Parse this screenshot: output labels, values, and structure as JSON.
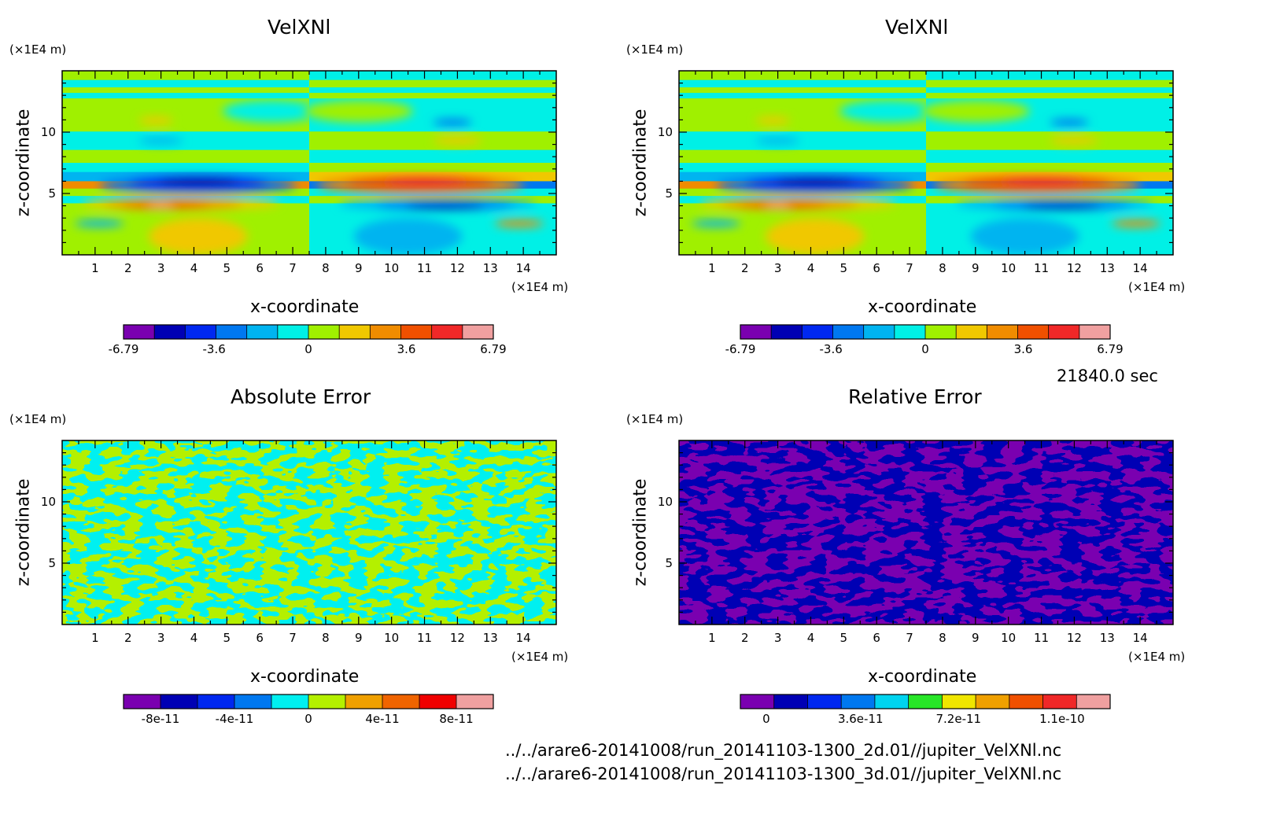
{
  "footer": {
    "time": "21840.0 sec",
    "file1": "../../arare6-20141008/run_20141103-1300_2d.01//jupiter_VelXNl.nc",
    "file2": "../../arare6-20141008/run_20141103-1300_3d.01//jupiter_VelXNl.nc"
  },
  "chart_data": [
    {
      "type": "heatmap",
      "title": "VelXNl",
      "xlabel": "x-coordinate",
      "ylabel": "z-coordinate",
      "x_unit": "(×1E4 m)",
      "y_unit": "(×1E4 m)",
      "xlim": [
        0,
        15
      ],
      "ylim": [
        0,
        15
      ],
      "xticks": [
        "1",
        "2",
        "3",
        "4",
        "5",
        "6",
        "7",
        "8",
        "9",
        "10",
        "11",
        "12",
        "13",
        "14"
      ],
      "yticks": [
        "5",
        "10"
      ],
      "colorbar": {
        "colors": [
          "#7a00b0",
          "#0000b4",
          "#0028f0",
          "#0078f0",
          "#00b4f0",
          "#00f0e6",
          "#a0f000",
          "#f0c800",
          "#f08c00",
          "#f05000",
          "#f02828",
          "#f0a0a0"
        ],
        "tick_labels": [
          "-6.79",
          "-3.6",
          "0",
          "3.6",
          "6.79"
        ],
        "tick_positions": [
          0,
          0.245,
          0.5,
          0.765,
          1
        ]
      }
    },
    {
      "type": "heatmap",
      "title": "VelXNl",
      "xlabel": "x-coordinate",
      "ylabel": "z-coordinate",
      "x_unit": "(×1E4 m)",
      "y_unit": "(×1E4 m)",
      "xlim": [
        0,
        15
      ],
      "ylim": [
        0,
        15
      ],
      "xticks": [
        "1",
        "2",
        "3",
        "4",
        "5",
        "6",
        "7",
        "8",
        "9",
        "10",
        "11",
        "12",
        "13",
        "14"
      ],
      "yticks": [
        "5",
        "10"
      ],
      "colorbar": {
        "colors": [
          "#7a00b0",
          "#0000b4",
          "#0028f0",
          "#0078f0",
          "#00b4f0",
          "#00f0e6",
          "#a0f000",
          "#f0c800",
          "#f08c00",
          "#f05000",
          "#f02828",
          "#f0a0a0"
        ],
        "tick_labels": [
          "-6.79",
          "-3.6",
          "0",
          "3.6",
          "6.79"
        ],
        "tick_positions": [
          0,
          0.245,
          0.5,
          0.765,
          1
        ]
      }
    },
    {
      "type": "heatmap",
      "title": "Absolute Error",
      "xlabel": "x-coordinate",
      "ylabel": "z-coordinate",
      "x_unit": "(×1E4 m)",
      "y_unit": "(×1E4 m)",
      "xlim": [
        0,
        15
      ],
      "ylim": [
        0,
        15
      ],
      "xticks": [
        "1",
        "2",
        "3",
        "4",
        "5",
        "6",
        "7",
        "8",
        "9",
        "10",
        "11",
        "12",
        "13",
        "14"
      ],
      "yticks": [
        "5",
        "10"
      ],
      "colorbar": {
        "colors": [
          "#7a00b0",
          "#0000b4",
          "#0028f0",
          "#0078f0",
          "#00f0f0",
          "#b4f000",
          "#f0a000",
          "#f06400",
          "#f00000",
          "#f0a0a0"
        ],
        "tick_labels": [
          "-8e-11",
          "-4e-11",
          "0",
          "4e-11",
          "8e-11"
        ],
        "tick_positions": [
          0.1,
          0.3,
          0.5,
          0.7,
          0.9
        ]
      }
    },
    {
      "type": "heatmap",
      "title": "Relative Error",
      "xlabel": "x-coordinate",
      "ylabel": "z-coordinate",
      "x_unit": "(×1E4 m)",
      "y_unit": "(×1E4 m)",
      "xlim": [
        0,
        15
      ],
      "ylim": [
        0,
        15
      ],
      "xticks": [
        "1",
        "2",
        "3",
        "4",
        "5",
        "6",
        "7",
        "8",
        "9",
        "10",
        "11",
        "12",
        "13",
        "14"
      ],
      "yticks": [
        "5",
        "10"
      ],
      "colorbar": {
        "colors": [
          "#7a00b0",
          "#0000b4",
          "#0028f0",
          "#0078f0",
          "#00d4f0",
          "#28e628",
          "#f0e600",
          "#f0a000",
          "#f05000",
          "#f02828",
          "#f0a0a0"
        ],
        "tick_labels": [
          "0",
          "3.6e-11",
          "7.2e-11",
          "1.1e-10"
        ],
        "tick_positions": [
          0.07,
          0.325,
          0.59,
          0.87
        ]
      }
    }
  ]
}
